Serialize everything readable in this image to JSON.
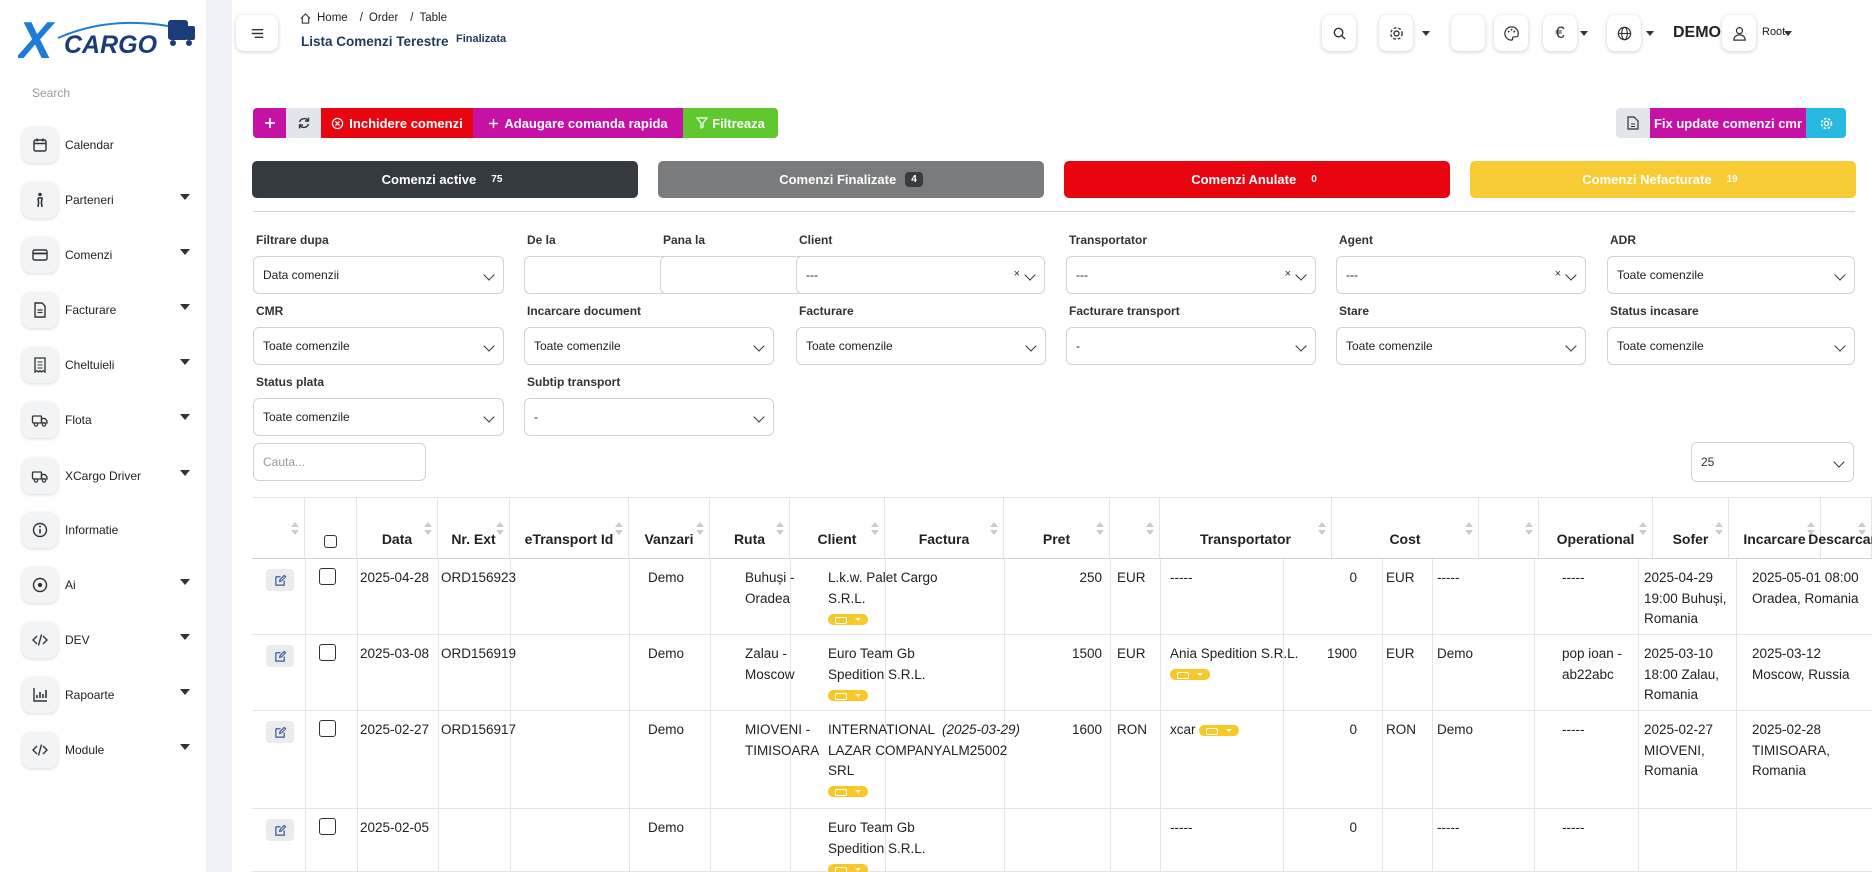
{
  "brand": {
    "logo_text": "CARGO",
    "logo_x": "X"
  },
  "sidebar": {
    "search_placeholder": "Search",
    "items": [
      {
        "label": "Calendar",
        "icon": "calendar-icon",
        "has_caret": false
      },
      {
        "label": "Parteneri",
        "icon": "person-icon",
        "has_caret": true
      },
      {
        "label": "Comenzi",
        "icon": "credit-card-icon",
        "has_caret": true
      },
      {
        "label": "Facturare",
        "icon": "document-icon",
        "has_caret": true
      },
      {
        "label": "Cheltuieli",
        "icon": "receipt-icon",
        "has_caret": true
      },
      {
        "label": "Flota",
        "icon": "truck-icon",
        "has_caret": true
      },
      {
        "label": "XCargo Driver",
        "icon": "truck-icon",
        "has_caret": true
      },
      {
        "label": "Informatie",
        "icon": "info-icon",
        "has_caret": false
      },
      {
        "label": "Ai",
        "icon": "ai-icon",
        "has_caret": true
      },
      {
        "label": "DEV",
        "icon": "code-icon",
        "has_caret": true
      },
      {
        "label": "Rapoarte",
        "icon": "bar-chart-icon",
        "has_caret": true
      },
      {
        "label": "Module",
        "icon": "code-icon",
        "has_caret": true
      }
    ]
  },
  "header": {
    "breadcrumb": [
      "Home",
      "Order",
      "Table"
    ],
    "page_title": "Lista Comenzi Terestre",
    "page_subtitle": "Finalizata",
    "currency_symbol": "€",
    "company": "DEMO",
    "user": "Root"
  },
  "toolbar": {
    "close_orders": "Inchidere comenzi",
    "quick_add": "Adaugare comanda rapida",
    "filter": "Filtreaza",
    "fix_update": "Fix update comenzi cmr"
  },
  "stats": [
    {
      "label": "Comenzi active",
      "count": "75",
      "color": "#343a40"
    },
    {
      "label": "Comenzi Finalizate",
      "count": "4",
      "color": "#7a7b7d"
    },
    {
      "label": "Comenzi Anulate",
      "count": "0",
      "color": "#e8050f"
    },
    {
      "label": "Comenzi Nefacturate",
      "count": "19",
      "color": "#f8cc34"
    }
  ],
  "filters": {
    "filtrare_dupa": {
      "label": "Filtrare dupa",
      "value": "Data comenzii"
    },
    "de_la": {
      "label": "De la",
      "value": ""
    },
    "pana_la": {
      "label": "Pana la",
      "value": ""
    },
    "client": {
      "label": "Client",
      "value": "---"
    },
    "transportator": {
      "label": "Transportator",
      "value": "---"
    },
    "agent": {
      "label": "Agent",
      "value": "---"
    },
    "adr": {
      "label": "ADR",
      "value": "Toate comenzile"
    },
    "cmr": {
      "label": "CMR",
      "value": "Toate comenzile"
    },
    "incarcare_document": {
      "label": "Incarcare document",
      "value": "Toate comenzile"
    },
    "facturare": {
      "label": "Facturare",
      "value": "Toate comenzile"
    },
    "facturare_transport": {
      "label": "Facturare transport",
      "value": "-"
    },
    "stare": {
      "label": "Stare",
      "value": "Toate comenzile"
    },
    "status_incasare": {
      "label": "Status incasare",
      "value": "Toate comenzile"
    },
    "status_plata": {
      "label": "Status plata",
      "value": "Toate comenzile"
    },
    "subtip_transport": {
      "label": "Subtip transport",
      "value": "-"
    },
    "search_placeholder": "Cauta...",
    "page_size": "25"
  },
  "table": {
    "columns": [
      "",
      "",
      "Data",
      "Nr. Ext",
      "eTransport Id",
      "Vanzari",
      "Ruta",
      "Client",
      "Factura",
      "Pret",
      "",
      "Transportator",
      "Cost",
      "",
      "Operational",
      "Sofer",
      "Incarcare",
      "Descarcare"
    ],
    "rows": [
      {
        "data": "2025-04-28",
        "nr_ext": "ORD156923",
        "etransport": "",
        "vanzari": "Demo",
        "ruta": "Buhuși - Oradea",
        "client": "L.k.w. Palet Cargo S.R.L.",
        "factura_date": "",
        "factura": "",
        "pret": "250",
        "pret_cur": "EUR",
        "transportator": "-----",
        "cost": "0",
        "cost_cur": "EUR",
        "operational": "-----",
        "sofer": "-----",
        "incarcare": "2025-04-29 19:00 Buhuși, Romania",
        "descarcare": "2025-05-01 08:00 Oradea, Romania"
      },
      {
        "data": "2025-03-08",
        "nr_ext": "ORD156919",
        "etransport": "",
        "vanzari": "Demo",
        "ruta": "Zalau - Moscow",
        "client": "Euro Team Gb Spedition S.R.L.",
        "factura_date": "",
        "factura": "",
        "pret": "1500",
        "pret_cur": "EUR",
        "transportator": "Ania Spedition S.R.L.",
        "cost": "1900",
        "cost_cur": "EUR",
        "operational": "Demo",
        "sofer": "pop ioan - ab22abc",
        "incarcare": "2025-03-10 18:00 Zalau, Romania",
        "descarcare": "2025-03-12 Moscow, Russia"
      },
      {
        "data": "2025-02-27",
        "nr_ext": "ORD156917",
        "etransport": "",
        "vanzari": "Demo",
        "ruta": "MIOVENI - TIMISOARA",
        "client": "INTERNATIONAL LAZAR COMPANY SRL",
        "factura_date": "(2025-03-29)",
        "factura": "ALM25002",
        "pret": "1600",
        "pret_cur": "RON",
        "transportator": "xcar",
        "cost": "0",
        "cost_cur": "RON",
        "operational": "Demo",
        "sofer": "-----",
        "incarcare": "2025-02-27 MIOVENI, Romania",
        "descarcare": "2025-02-28 TIMISOARA, Romania"
      },
      {
        "data": "2025-02-05",
        "nr_ext": "",
        "etransport": "",
        "vanzari": "Demo",
        "ruta": "",
        "client": "Euro Team Gb Spedition S.R.L.",
        "factura_date": "",
        "factura": "",
        "pret": "",
        "pret_cur": "",
        "transportator": "-----",
        "cost": "0",
        "cost_cur": "",
        "operational": "-----",
        "sofer": "-----",
        "incarcare": "",
        "descarcare": ""
      }
    ]
  }
}
